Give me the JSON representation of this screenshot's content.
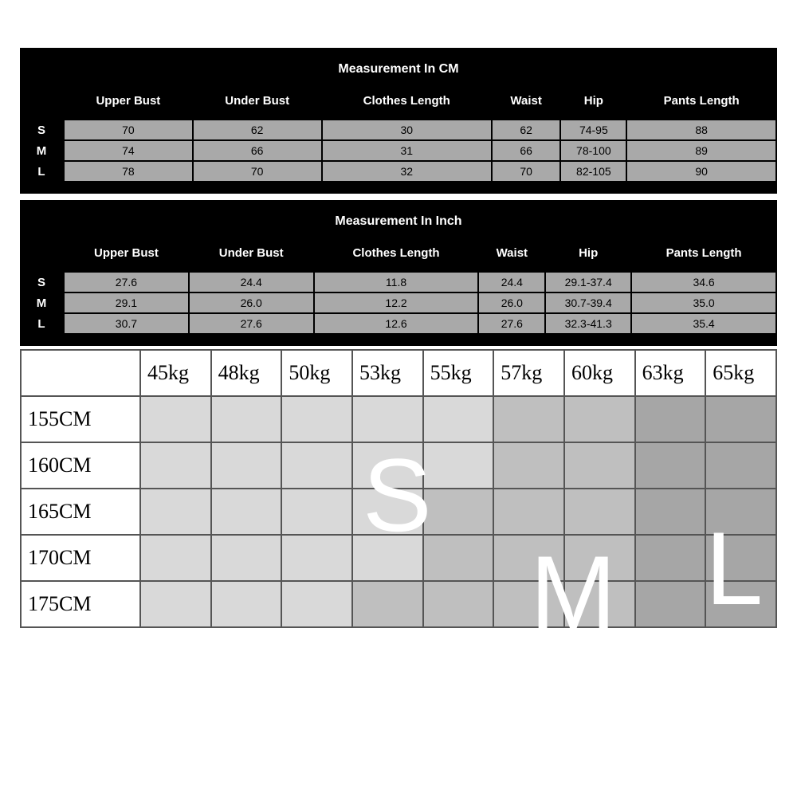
{
  "cm": {
    "title": "Measurement In CM",
    "columns": [
      "Upper Bust",
      "Under Bust",
      "Clothes Length",
      "Waist",
      "Hip",
      "Pants Length"
    ],
    "sizes": [
      "S",
      "M",
      "L"
    ],
    "rows": [
      [
        "70",
        "62",
        "30",
        "62",
        "74-95",
        "88"
      ],
      [
        "74",
        "66",
        "31",
        "66",
        "78-100",
        "89"
      ],
      [
        "78",
        "70",
        "32",
        "70",
        "82-105",
        "90"
      ]
    ]
  },
  "inch": {
    "title": "Measurement In Inch",
    "columns": [
      "Upper Bust",
      "Under Bust",
      "Clothes Length",
      "Waist",
      "Hip",
      "Pants Length"
    ],
    "sizes": [
      "S",
      "M",
      "L"
    ],
    "rows": [
      [
        "27.6",
        "24.4",
        "11.8",
        "24.4",
        "29.1-37.4",
        "34.6"
      ],
      [
        "29.1",
        "26.0",
        "12.2",
        "26.0",
        "30.7-39.4",
        "35.0"
      ],
      [
        "30.7",
        "27.6",
        "12.6",
        "27.6",
        "32.3-41.3",
        "35.4"
      ]
    ]
  },
  "grid": {
    "weights": [
      "45kg",
      "48kg",
      "50kg",
      "53kg",
      "55kg",
      "57kg",
      "60kg",
      "63kg",
      "65kg"
    ],
    "heights": [
      "155CM",
      "160CM",
      "165CM",
      "170CM",
      "175CM"
    ],
    "zones": [
      [
        "s",
        "s",
        "s",
        "s",
        "s",
        "m",
        "m",
        "l",
        "l"
      ],
      [
        "s",
        "s",
        "s",
        "s",
        "s",
        "m",
        "m",
        "l",
        "l"
      ],
      [
        "s",
        "s",
        "s",
        "s",
        "m",
        "m",
        "m",
        "l",
        "l"
      ],
      [
        "s",
        "s",
        "s",
        "s",
        "m",
        "m",
        "m",
        "l",
        "l"
      ],
      [
        "s",
        "s",
        "s",
        "m",
        "m",
        "m",
        "m",
        "l",
        "l"
      ]
    ],
    "letters": {
      "s": "S",
      "m": "M",
      "l": "L"
    },
    "colors": {
      "s_zone": "#d9d9d9",
      "m_zone": "#bfbfbf",
      "l_zone": "#a6a6a6",
      "border": "#555555",
      "letter": "#ffffff"
    }
  },
  "style": {
    "dark_bg": "#000000",
    "dark_text": "#ffffff",
    "cell_bg": "#a9a9a9",
    "cell_text": "#000000",
    "page_bg": "#ffffff"
  }
}
